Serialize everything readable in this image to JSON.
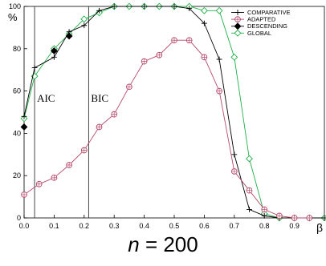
{
  "chart_data": {
    "type": "line",
    "xlabel": "β",
    "ylabel": "%",
    "xlim": [
      0,
      1.0
    ],
    "ylim": [
      0,
      100
    ],
    "x_ticks": [
      "0.0",
      "0.1",
      "0.2",
      "0.3",
      "0.4",
      "0.5",
      "0.6",
      "0.7",
      "0.8",
      "0.9"
    ],
    "y_ticks": [
      "0",
      "20",
      "40",
      "60",
      "80",
      "100"
    ],
    "grid": false,
    "legend_position": "top-right",
    "annotations": [
      {
        "text": "AIC",
        "x": 0.035
      },
      {
        "text": "BIC",
        "x": 0.215
      }
    ],
    "series": [
      {
        "name": "COMPARATIVE",
        "color": "#000000",
        "marker": "plus",
        "x": [
          0,
          0.035,
          0.1,
          0.15,
          0.2,
          0.25,
          0.3,
          0.4,
          0.5,
          0.55,
          0.6,
          0.65,
          0.7,
          0.75,
          0.8,
          0.85,
          0.9,
          0.95,
          1.0
        ],
        "values": [
          48,
          71,
          76,
          88,
          91,
          98,
          100,
          100,
          100,
          99,
          92,
          75,
          30,
          4,
          1,
          0,
          0,
          0,
          0
        ]
      },
      {
        "name": "ADAPTED",
        "color": "#b54a6a",
        "marker": "circle-cross",
        "x": [
          0,
          0.05,
          0.1,
          0.15,
          0.2,
          0.25,
          0.3,
          0.35,
          0.4,
          0.45,
          0.5,
          0.55,
          0.6,
          0.65,
          0.7,
          0.75,
          0.8,
          0.85,
          0.9,
          0.95
        ],
        "values": [
          11,
          16,
          19,
          25,
          32,
          43,
          49,
          62,
          74,
          77,
          84,
          84,
          76,
          60,
          22,
          13,
          4,
          1,
          0,
          0
        ]
      },
      {
        "name": "DESCENDING",
        "color": "#000000",
        "marker": "diamond-filled",
        "x": [
          0,
          0.1,
          0.15
        ],
        "values": [
          43,
          79,
          86
        ]
      },
      {
        "name": "GLOBAL",
        "color": "#22b04a",
        "marker": "diamond-open",
        "x": [
          0,
          0.035,
          0.1,
          0.15,
          0.2,
          0.25,
          0.3,
          0.35,
          0.4,
          0.45,
          0.5,
          0.55,
          0.6,
          0.65,
          0.7,
          0.75,
          0.8,
          0.85,
          0.9,
          0.95,
          1.0
        ],
        "values": [
          47,
          67,
          80,
          87,
          94,
          97,
          100,
          100,
          100,
          100,
          100,
          100,
          98,
          98,
          76,
          28,
          2,
          0,
          0,
          0,
          0
        ]
      }
    ]
  },
  "caption": {
    "variable": "n",
    "rest": " = 200"
  }
}
